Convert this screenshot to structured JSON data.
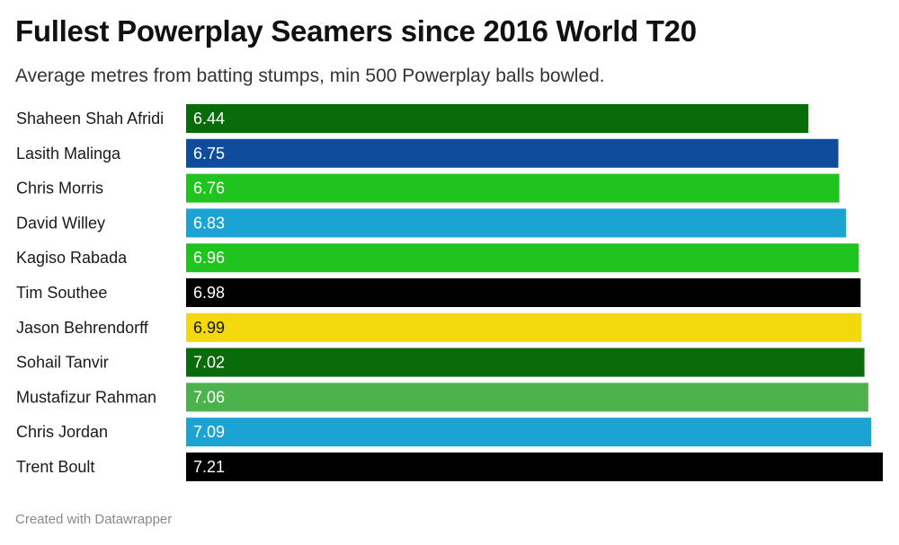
{
  "title": "Fullest Powerplay Seamers since 2016 World T20",
  "subtitle": "Average metres from batting stumps, min 500 Powerplay balls bowled.",
  "footer": "Created with Datawrapper",
  "chart_data": {
    "type": "bar",
    "orientation": "horizontal",
    "title": "Fullest Powerplay Seamers since 2016 World T20",
    "subtitle": "Average metres from batting stumps, min 500 Powerplay balls bowled.",
    "xlabel": "",
    "ylabel": "",
    "xlim": [
      0,
      7.21
    ],
    "grid": false,
    "legend": "none",
    "categories": [
      "Shaheen Shah Afridi",
      "Lasith Malinga",
      "Chris Morris",
      "David Willey",
      "Kagiso Rabada",
      "Tim Southee",
      "Jason Behrendorff",
      "Sohail Tanvir",
      "Mustafizur Rahman",
      "Chris Jordan",
      "Trent Boult"
    ],
    "values": [
      6.44,
      6.75,
      6.76,
      6.83,
      6.96,
      6.98,
      6.99,
      7.02,
      7.06,
      7.09,
      7.21
    ],
    "value_labels": [
      "6.44",
      "6.75",
      "6.76",
      "6.83",
      "6.96",
      "6.98",
      "6.99",
      "7.02",
      "7.06",
      "7.09",
      "7.21"
    ],
    "colors": [
      "#0a6b0a",
      "#0f4c9e",
      "#1fc41f",
      "#1ba4d3",
      "#1fc41f",
      "#000000",
      "#f2d80c",
      "#0a6b0a",
      "#4cb34c",
      "#1ba4d3",
      "#000000"
    ],
    "value_label_colors": [
      "#ffffff",
      "#ffffff",
      "#ffffff",
      "#ffffff",
      "#ffffff",
      "#ffffff",
      "#1a1a1a",
      "#ffffff",
      "#ffffff",
      "#ffffff",
      "#ffffff"
    ]
  }
}
